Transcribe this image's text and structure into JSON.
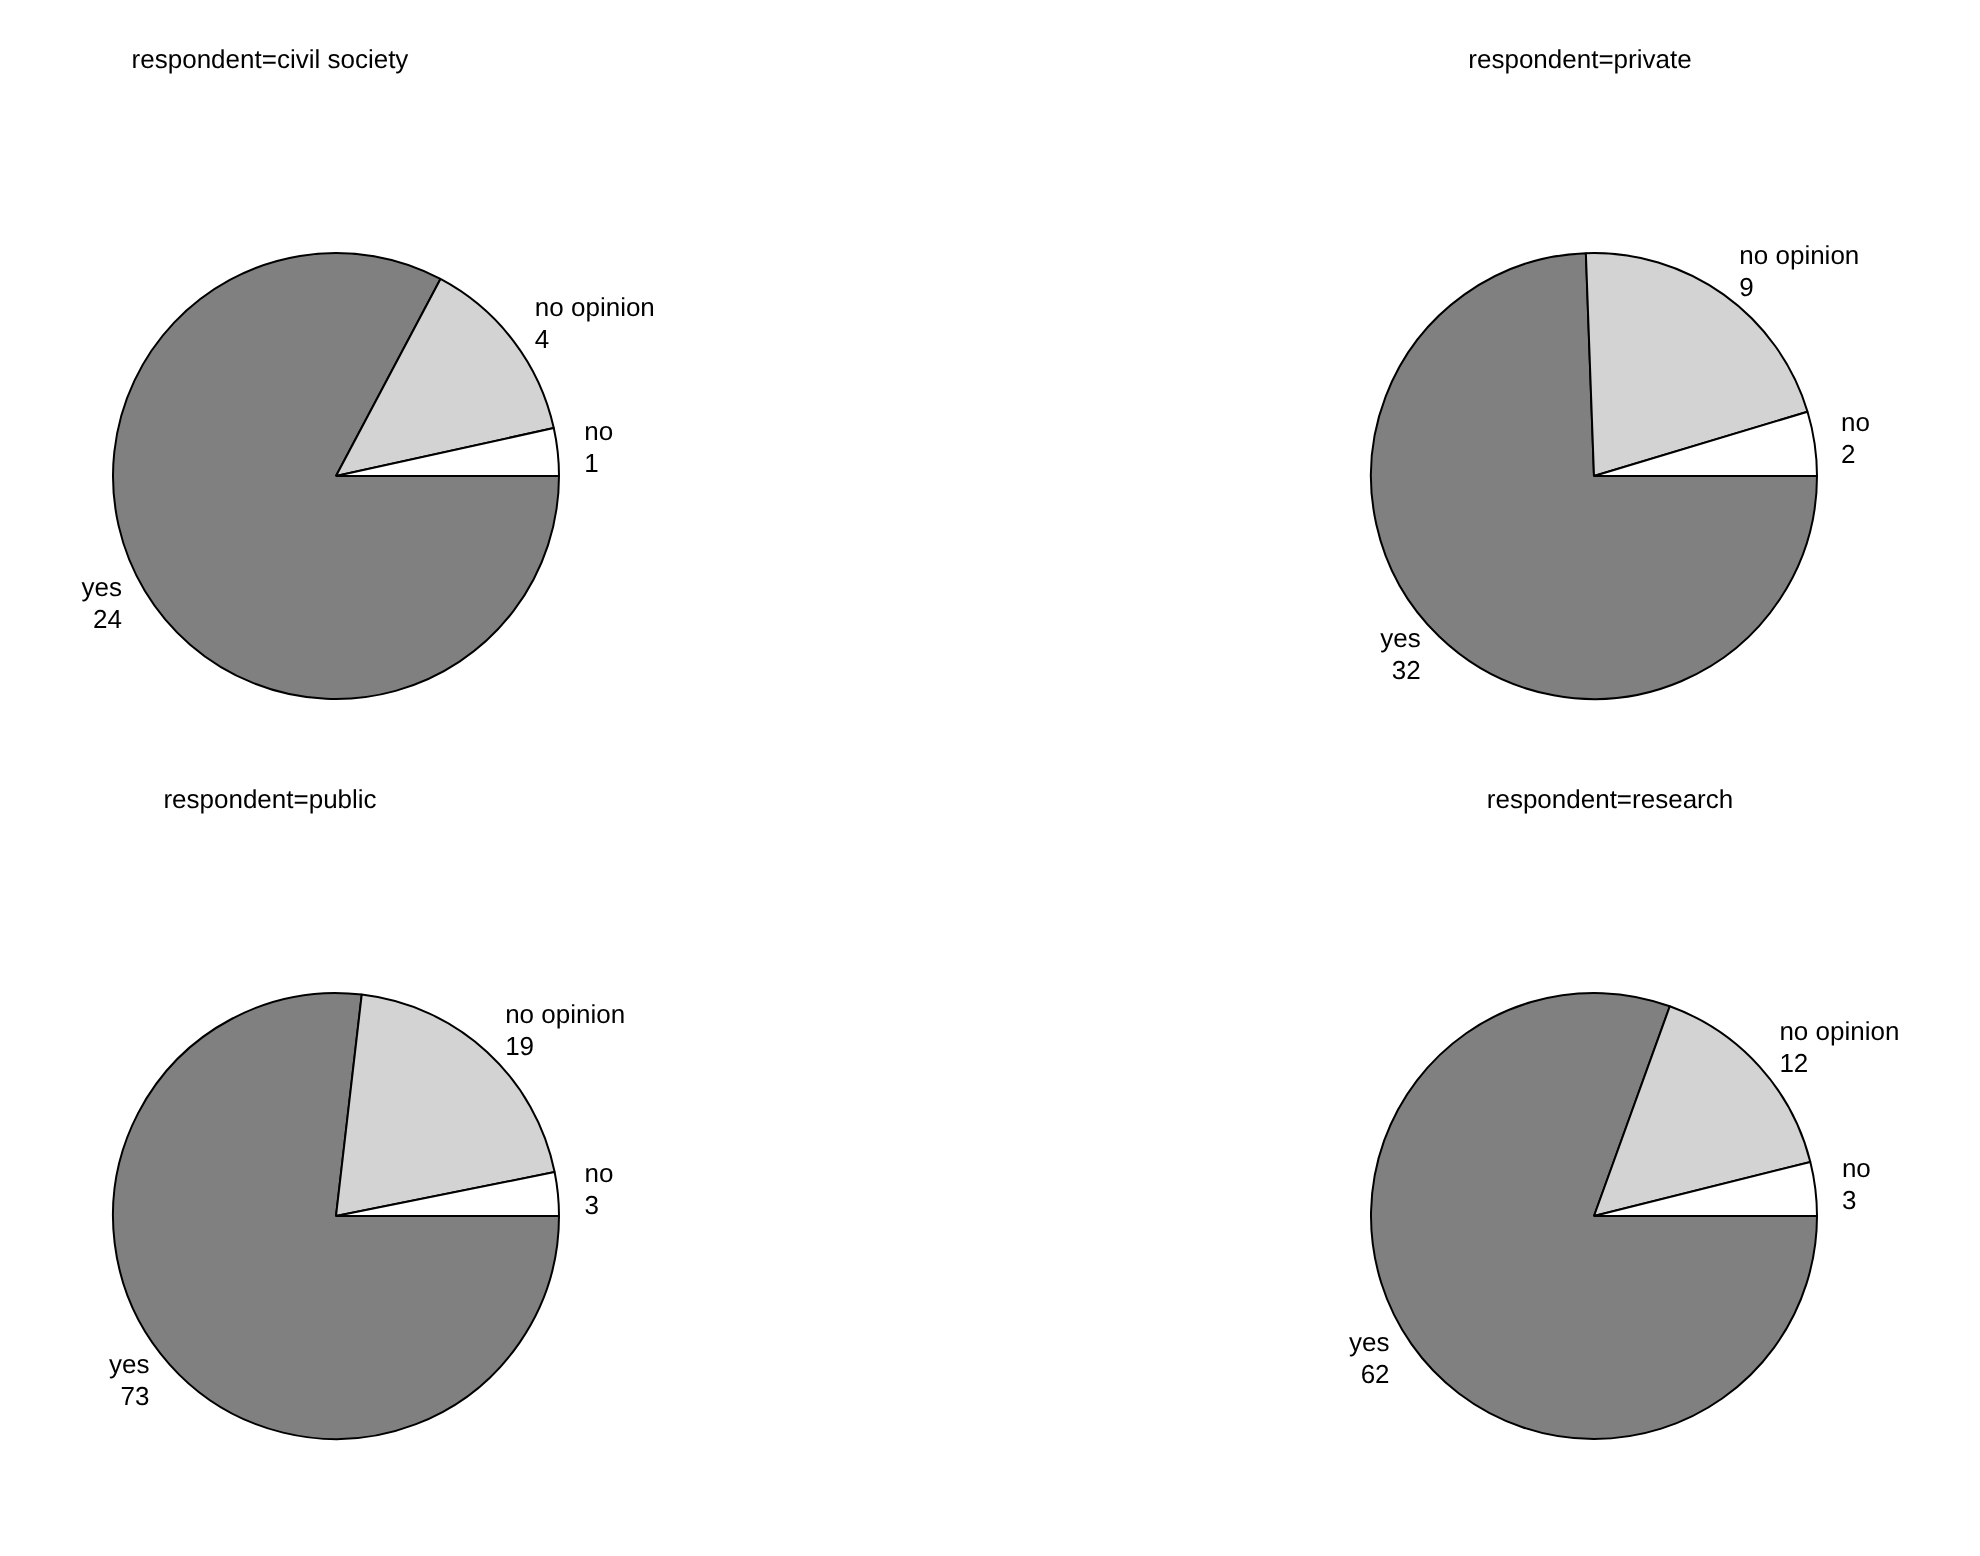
{
  "chart_data": [
    {
      "type": "pie",
      "title": "respondent=civil society",
      "categories": [
        "yes",
        "no opinion",
        "no"
      ],
      "values": [
        24,
        4,
        1
      ],
      "colors": [
        "#808080",
        "#d3d3d3",
        "#ffffff"
      ],
      "data_labels": true,
      "legend": false
    },
    {
      "type": "pie",
      "title": "respondent=private",
      "categories": [
        "yes",
        "no opinion",
        "no"
      ],
      "values": [
        32,
        9,
        2
      ],
      "colors": [
        "#808080",
        "#d3d3d3",
        "#ffffff"
      ],
      "data_labels": true,
      "legend": false
    },
    {
      "type": "pie",
      "title": "respondent=public",
      "categories": [
        "yes",
        "no opinion",
        "no"
      ],
      "values": [
        73,
        19,
        3
      ],
      "colors": [
        "#808080",
        "#d3d3d3",
        "#ffffff"
      ],
      "data_labels": true,
      "legend": false
    },
    {
      "type": "pie",
      "title": "respondent=research",
      "categories": [
        "yes",
        "no opinion",
        "no"
      ],
      "values": [
        62,
        12,
        3
      ],
      "colors": [
        "#808080",
        "#d3d3d3",
        "#ffffff"
      ],
      "data_labels": true,
      "legend": false
    }
  ]
}
